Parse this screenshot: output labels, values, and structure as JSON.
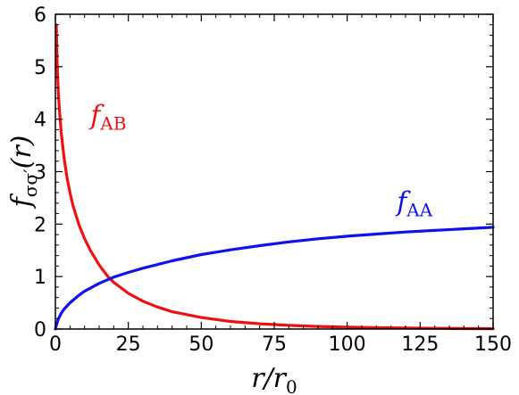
{
  "chart_data": {
    "type": "line",
    "xlabel": "r/r_0",
    "ylabel": "f_σσ′(r)",
    "xlim": [
      0,
      150
    ],
    "ylim": [
      0,
      6
    ],
    "xticks": [
      "0",
      "25",
      "50",
      "75",
      "100",
      "125",
      "150"
    ],
    "yticks": [
      "0",
      "1",
      "2",
      "3",
      "4",
      "5",
      "6"
    ],
    "grid": false,
    "series": [
      {
        "name": "f_AB",
        "color": "#ee1111",
        "x": [
          0.3,
          0.6,
          1,
          1.5,
          2,
          3,
          4,
          5,
          6,
          8,
          10,
          12,
          15,
          18,
          20,
          25,
          30,
          35,
          40,
          50,
          60,
          70,
          80,
          90,
          100,
          110,
          120,
          130,
          140,
          150
        ],
        "y": [
          5.8,
          5.05,
          4.5,
          4.1,
          3.75,
          3.25,
          2.88,
          2.6,
          2.36,
          2.0,
          1.72,
          1.5,
          1.22,
          1.0,
          0.89,
          0.68,
          0.53,
          0.42,
          0.33,
          0.22,
          0.145,
          0.1,
          0.07,
          0.05,
          0.035,
          0.025,
          0.018,
          0.013,
          0.009,
          0.006
        ]
      },
      {
        "name": "f_AA",
        "color": "#1111ee",
        "x": [
          0,
          0.5,
          1,
          2,
          3,
          5,
          8,
          10,
          15,
          20,
          25,
          30,
          40,
          50,
          60,
          70,
          80,
          90,
          100,
          110,
          120,
          130,
          140,
          150
        ],
        "y": [
          0.0,
          0.1,
          0.19,
          0.3,
          0.38,
          0.5,
          0.64,
          0.72,
          0.87,
          0.99,
          1.08,
          1.16,
          1.3,
          1.42,
          1.51,
          1.59,
          1.66,
          1.72,
          1.77,
          1.81,
          1.85,
          1.88,
          1.91,
          1.94
        ]
      }
    ],
    "annotations": [
      {
        "base": "f",
        "sub": "AB",
        "x": 12,
        "y": 3.9,
        "color": "#ee1111"
      },
      {
        "base": "f",
        "sub": "AA",
        "x": 117,
        "y": 2.25,
        "color": "#1111ee"
      }
    ]
  }
}
